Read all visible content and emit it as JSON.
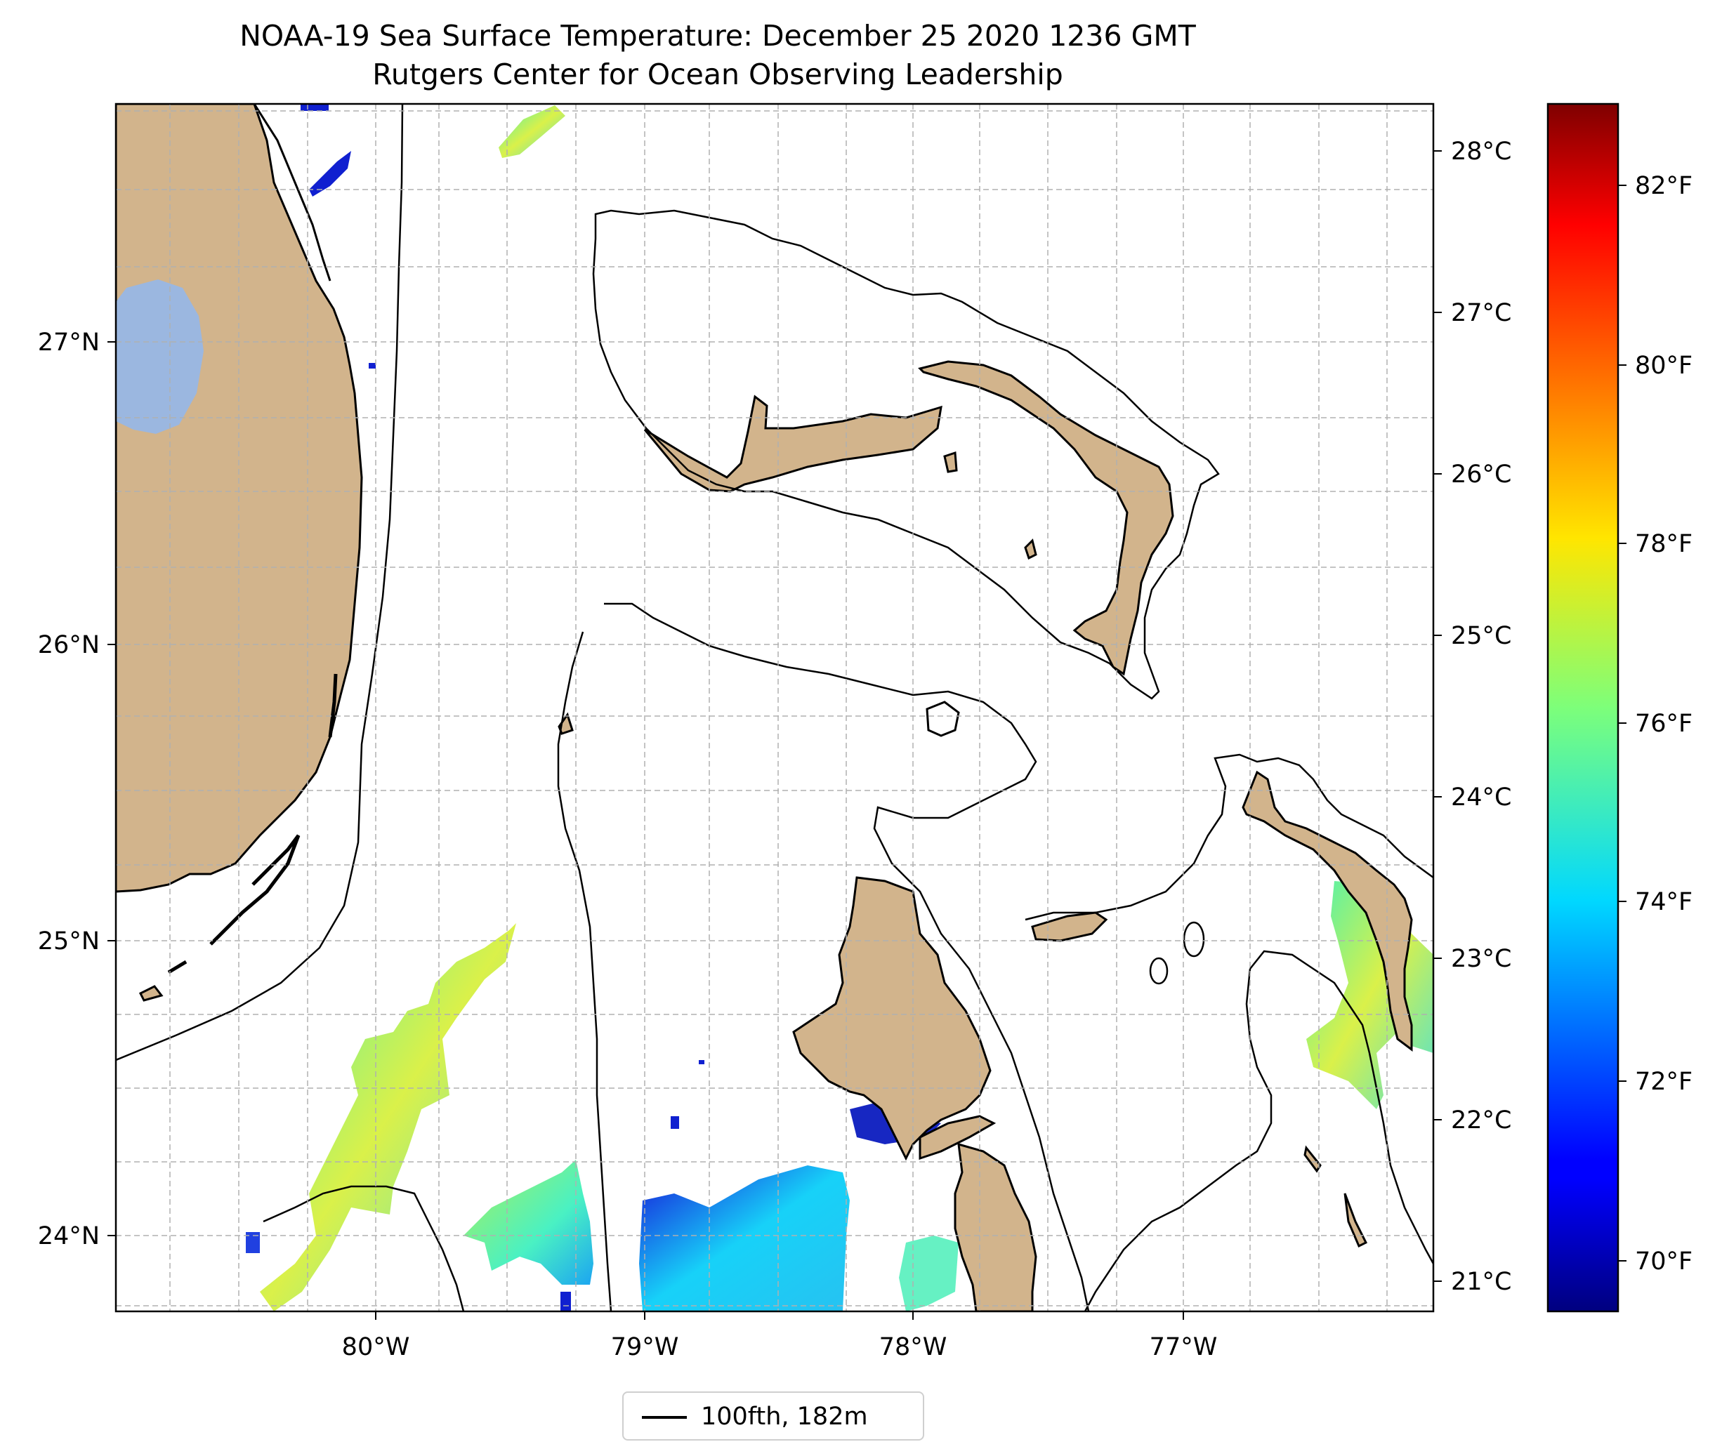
{
  "title": "NOAA-19 Sea Surface Temperature: December 25 2020 1236 GMT",
  "subtitle": "Rutgers Center for Ocean Observing Leadership",
  "map": {
    "extent": {
      "lon": [
        -80.96,
        -76.1
      ],
      "lat": [
        23.76,
        27.81
      ]
    },
    "x_ticks": [
      "80°W",
      "79°W",
      "78°W",
      "77°W"
    ],
    "y_ticks": [
      "24°N",
      "25°N",
      "26°N",
      "27°N"
    ],
    "grid": true,
    "land_color": "#d2b48c",
    "lake_color": "#9bb7e0"
  },
  "colorbar": {
    "colormap": "jet",
    "celsius_ticks": [
      "21°C",
      "22°C",
      "23°C",
      "24°C",
      "25°C",
      "26°C",
      "27°C",
      "28°C"
    ],
    "fahrenheit_ticks": [
      "70°F",
      "72°F",
      "74°F",
      "76°F",
      "78°F",
      "80°F",
      "82°F"
    ]
  },
  "legend": {
    "label": "100fth, 182m"
  }
}
